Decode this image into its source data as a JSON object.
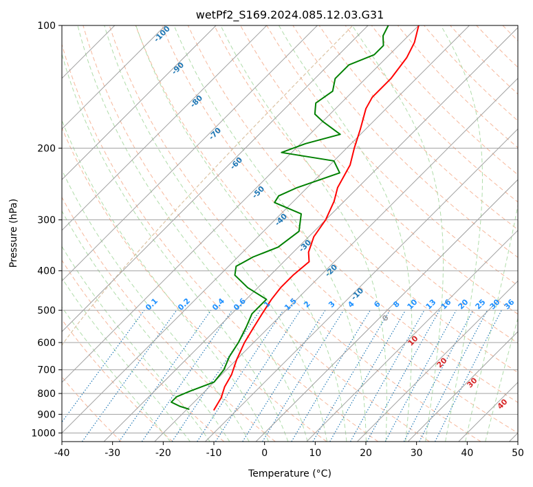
{
  "chart_data": {
    "type": "line",
    "chart_kind": "skew-T log-P diagram",
    "title": "wetPf2_S169.2024.085.12.03.G31",
    "xlabel": "Temperature (°C)",
    "ylabel": "Pressure (hPa)",
    "xlim": [
      -40,
      50
    ],
    "ylim": [
      1050,
      100
    ],
    "y_scale": "log",
    "grid": true,
    "x_ticks": [
      "-40",
      "-30",
      "-20",
      "-10",
      "0",
      "10",
      "20",
      "30",
      "40",
      "50"
    ],
    "y_ticks": [
      "100",
      "200",
      "300",
      "400",
      "500",
      "600",
      "700",
      "800",
      "900",
      "1000"
    ],
    "series": [
      {
        "role": "temperature",
        "color": "#ff0000",
        "points": [
          {
            "p": 880,
            "t": -14.5
          },
          {
            "p": 820,
            "t": -15.5
          },
          {
            "p": 770,
            "t": -17.0
          },
          {
            "p": 720,
            "t": -18.0
          },
          {
            "p": 660,
            "t": -20.0
          },
          {
            "p": 600,
            "t": -21.8
          },
          {
            "p": 550,
            "t": -23.0
          },
          {
            "p": 510,
            "t": -24.0
          },
          {
            "p": 470,
            "t": -25.0
          },
          {
            "p": 440,
            "t": -25.5
          },
          {
            "p": 410,
            "t": -25.5
          },
          {
            "p": 380,
            "t": -25.0
          },
          {
            "p": 360,
            "t": -27.0
          },
          {
            "p": 330,
            "t": -29.0
          },
          {
            "p": 300,
            "t": -30.0
          },
          {
            "p": 270,
            "t": -32.0
          },
          {
            "p": 250,
            "t": -34.0
          },
          {
            "p": 220,
            "t": -36.0
          },
          {
            "p": 200,
            "t": -38.5
          },
          {
            "p": 180,
            "t": -41.0
          },
          {
            "p": 160,
            "t": -44.0
          },
          {
            "p": 150,
            "t": -45.0
          },
          {
            "p": 135,
            "t": -45.0
          },
          {
            "p": 120,
            "t": -46.0
          },
          {
            "p": 110,
            "t": -47.5
          },
          {
            "p": 100,
            "t": -50.0
          }
        ]
      },
      {
        "role": "dewpoint",
        "color": "#008000",
        "points": [
          {
            "p": 875,
            "t": -19.5
          },
          {
            "p": 860,
            "t": -22.0
          },
          {
            "p": 840,
            "t": -24.5
          },
          {
            "p": 815,
            "t": -24.5
          },
          {
            "p": 790,
            "t": -23.0
          },
          {
            "p": 750,
            "t": -20.0
          },
          {
            "p": 700,
            "t": -20.5
          },
          {
            "p": 650,
            "t": -22.0
          },
          {
            "p": 600,
            "t": -23.0
          },
          {
            "p": 550,
            "t": -24.5
          },
          {
            "p": 510,
            "t": -26.0
          },
          {
            "p": 470,
            "t": -26.0
          },
          {
            "p": 440,
            "t": -32.0
          },
          {
            "p": 410,
            "t": -37.0
          },
          {
            "p": 390,
            "t": -38.5
          },
          {
            "p": 370,
            "t": -37.0
          },
          {
            "p": 350,
            "t": -34.0
          },
          {
            "p": 320,
            "t": -33.0
          },
          {
            "p": 290,
            "t": -36.0
          },
          {
            "p": 272,
            "t": -43.5
          },
          {
            "p": 262,
            "t": -44.0
          },
          {
            "p": 250,
            "t": -42.0
          },
          {
            "p": 230,
            "t": -36.5
          },
          {
            "p": 215,
            "t": -40.0
          },
          {
            "p": 205,
            "t": -52.0
          },
          {
            "p": 195,
            "t": -49.0
          },
          {
            "p": 185,
            "t": -44.0
          },
          {
            "p": 172,
            "t": -50.0
          },
          {
            "p": 165,
            "t": -53.0
          },
          {
            "p": 155,
            "t": -55.0
          },
          {
            "p": 145,
            "t": -54.0
          },
          {
            "p": 135,
            "t": -56.0
          },
          {
            "p": 125,
            "t": -56.0
          },
          {
            "p": 118,
            "t": -53.0
          },
          {
            "p": 112,
            "t": -53.0
          },
          {
            "p": 106,
            "t": -55.0
          },
          {
            "p": 100,
            "t": -56.0
          }
        ]
      }
    ],
    "reference_lines": {
      "isobars": [
        100,
        200,
        300,
        400,
        500,
        600,
        700,
        800,
        900,
        1000
      ],
      "skewed_isotherms": [
        -110,
        -100,
        -90,
        -80,
        -70,
        -60,
        -50,
        -40,
        -30,
        -20,
        -10,
        0,
        10,
        20,
        30,
        40,
        50
      ],
      "dry_adiabat_labels": [
        "-100",
        "-90",
        "-80",
        "-70",
        "-60",
        "-50",
        "-40",
        "-30",
        "-20",
        "-10"
      ],
      "moist_adiabat_labels": [
        "0",
        "10",
        "20",
        "30",
        "40"
      ],
      "mixing_ratio_labels": [
        "0.1",
        "0.2",
        "0.4",
        "0.6",
        "1",
        "1.5",
        "2",
        "3",
        "4",
        "6",
        "8",
        "10",
        "13",
        "16",
        "20",
        "25",
        "30",
        "36"
      ]
    },
    "colors": {
      "isotherm": "#a0a0a0",
      "dry_adiabat": "#f4a582",
      "moist_adiabat": "#a6d8a0",
      "mixing_ratio": "#1f77b4",
      "dry_adiabat_label": "#1f77b4",
      "moist_adiabat_label": "#d62728",
      "mixing_ratio_label": "#1e90ff",
      "lcl_curve": "#d2b48c"
    }
  }
}
